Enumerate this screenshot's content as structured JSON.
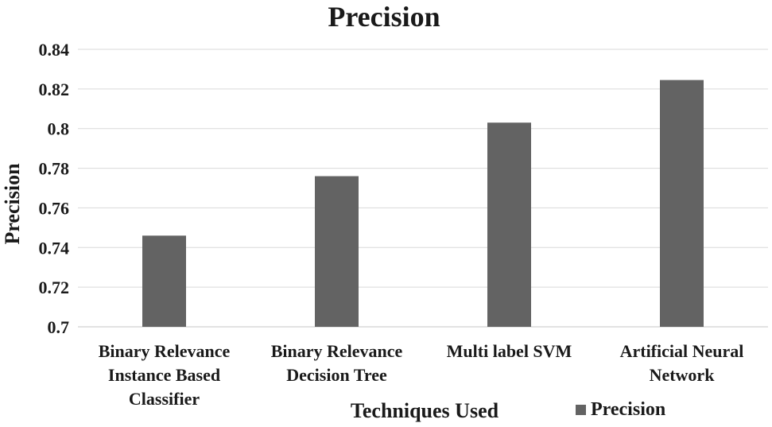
{
  "chart_data": {
    "type": "bar",
    "title": "Precision",
    "xlabel": "Techniques Used",
    "ylabel": "Precision",
    "categories": [
      [
        "Binary Relevance",
        "Instance Based",
        "Classifier"
      ],
      [
        "Binary Relevance",
        "Decision Tree"
      ],
      [
        "Multi label SVM"
      ],
      [
        "Artificial Neural",
        "Network"
      ]
    ],
    "series": [
      {
        "name": "Precision",
        "values": [
          0.746,
          0.776,
          0.803,
          0.8245
        ],
        "color": "#636363"
      }
    ],
    "ylim": [
      0.7,
      0.84
    ],
    "yticks": [
      "0.7",
      "0.72",
      "0.74",
      "0.76",
      "0.78",
      "0.8",
      "0.82",
      "0.84"
    ],
    "grid": true,
    "legend_position": "bottom-right"
  }
}
